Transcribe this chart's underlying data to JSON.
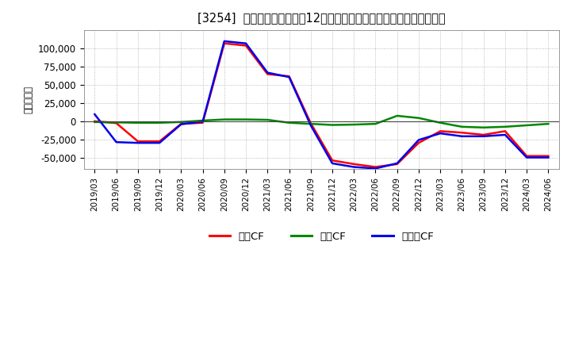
{
  "title": "[3254]  キャッシュフローの12か月移動合計の対前年同期増減額の推移",
  "ylabel": "（百万円）",
  "ylim": [
    -65000,
    125000
  ],
  "yticks": [
    -50000,
    -25000,
    0,
    25000,
    50000,
    75000,
    100000
  ],
  "background_color": "#ffffff",
  "grid_color": "#aaaaaa",
  "x_labels": [
    "2019/03",
    "2019/06",
    "2019/09",
    "2019/12",
    "2020/03",
    "2020/06",
    "2020/09",
    "2020/12",
    "2021/03",
    "2021/06",
    "2021/09",
    "2021/12",
    "2022/03",
    "2022/06",
    "2022/09",
    "2022/12",
    "2023/03",
    "2023/06",
    "2023/09",
    "2023/12",
    "2024/03",
    "2024/06"
  ],
  "series": {
    "営業CF": {
      "color": "#ff0000",
      "values": [
        500,
        -2000,
        -27000,
        -27000,
        -3000,
        -1500,
        107000,
        104000,
        65000,
        62000,
        -2000,
        -53000,
        -58000,
        -62000,
        -58000,
        -29000,
        -13000,
        -15000,
        -18000,
        -13000,
        -47000,
        -47000
      ]
    },
    "投賃CF": {
      "color": "#008800",
      "values": [
        -500,
        -1000,
        -1500,
        -1500,
        -500,
        1500,
        3000,
        3000,
        2500,
        -1500,
        -3000,
        -4500,
        -4000,
        -3000,
        8000,
        5000,
        -1500,
        -7000,
        -8000,
        -7000,
        -5000,
        -3000
      ]
    },
    "フリーCF": {
      "color": "#0000ee",
      "values": [
        10000,
        -28000,
        -29000,
        -29000,
        -3500,
        0,
        110000,
        107000,
        67000,
        61000,
        -5000,
        -57000,
        -62000,
        -64000,
        -57000,
        -25000,
        -16000,
        -20000,
        -20000,
        -18000,
        -49000,
        -49000
      ]
    }
  },
  "legend_labels": [
    "営業CF",
    "投賃CF",
    "フリーCF"
  ],
  "legend_colors": [
    "#ff0000",
    "#008800",
    "#0000ee"
  ]
}
